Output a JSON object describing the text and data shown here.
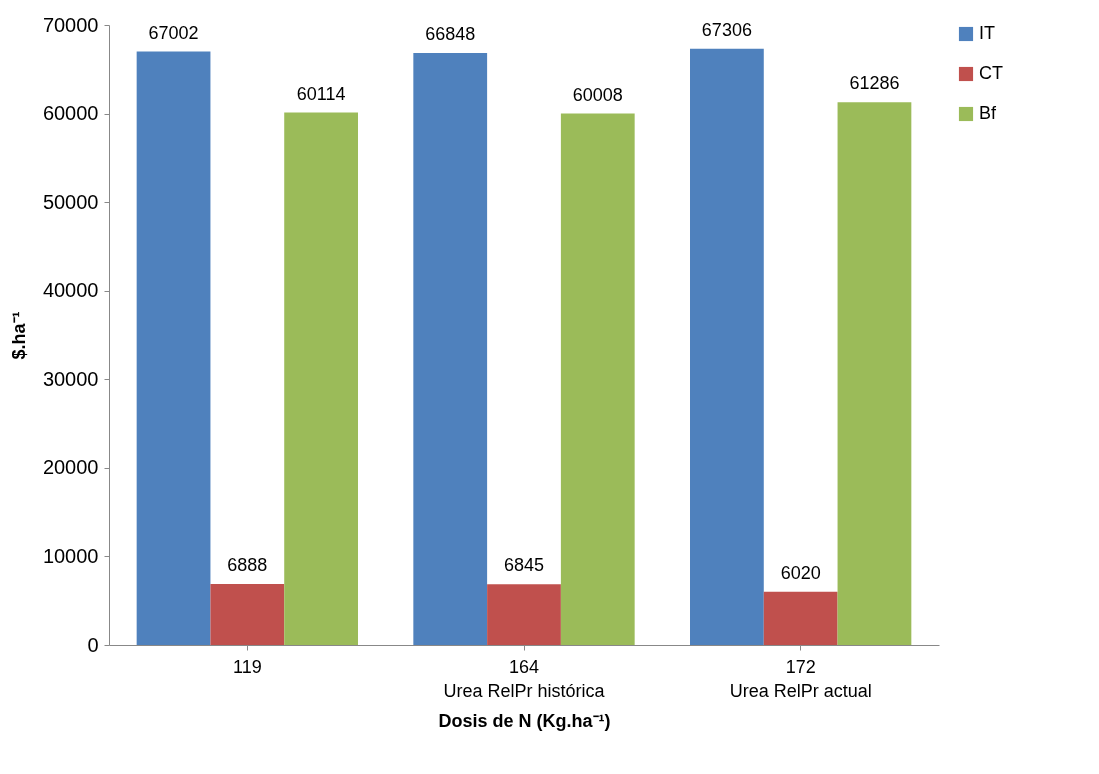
{
  "chart_data": {
    "type": "bar",
    "xlabel": "Dosis de N (Kg.ha⁻¹)",
    "ylabel": "$.ha⁻¹",
    "categories": [
      "119",
      "164\nUrea RelPr histórica",
      "172\nUrea RelPr actual"
    ],
    "series": [
      {
        "name": "IT",
        "color": "#4f81bd",
        "values": [
          67002,
          66848,
          67306
        ]
      },
      {
        "name": "CT",
        "color": "#c0504d",
        "values": [
          6888,
          6845,
          6020
        ]
      },
      {
        "name": "Bf",
        "color": "#9bbb59",
        "values": [
          60114,
          60008,
          61286
        ]
      }
    ],
    "ylim": [
      0,
      70000
    ],
    "yticks": [
      0,
      10000,
      20000,
      30000,
      40000,
      50000,
      60000,
      70000
    ],
    "grid": false,
    "legend": "right",
    "data_labels": true
  }
}
